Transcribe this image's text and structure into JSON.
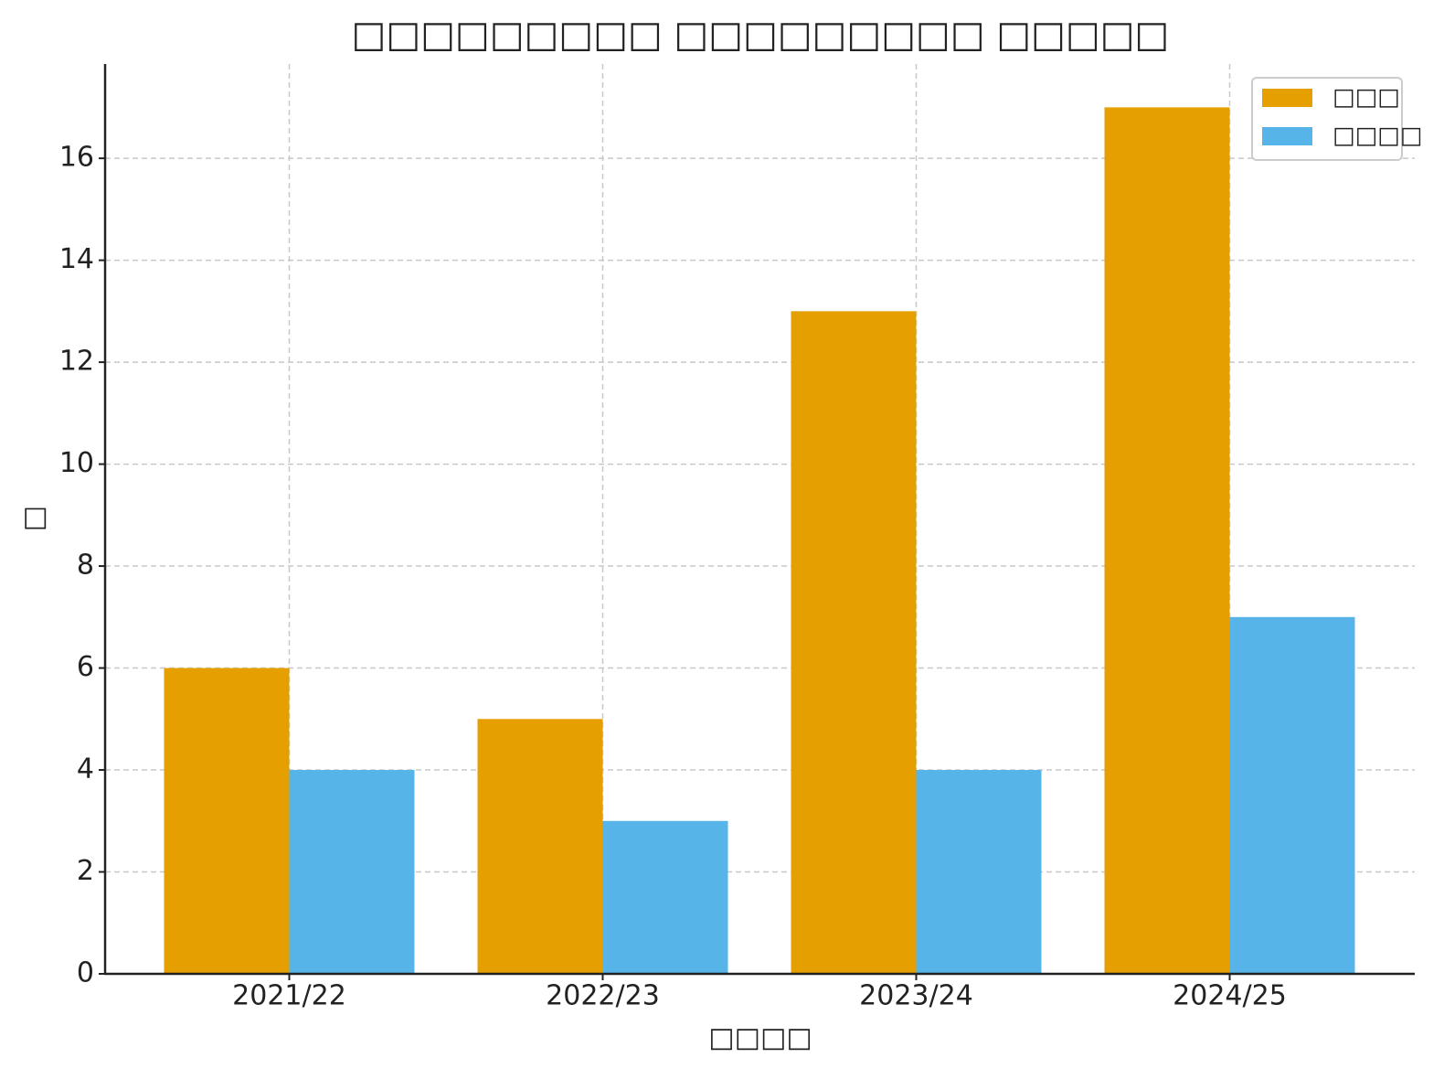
{
  "chart_data": {
    "type": "bar",
    "title": "□□□□□□□□□ □□□□□□□□□ □□□□□",
    "x_label": "□□□□",
    "y_label": "□",
    "categories": [
      "2021/22",
      "2022/23",
      "2023/24",
      "2024/25"
    ],
    "series": [
      {
        "name": "□□□",
        "color": "#e69f00",
        "values": [
          6,
          5,
          13,
          17
        ]
      },
      {
        "name": "□□□□",
        "color": "#56b4e9",
        "values": [
          4,
          3,
          4,
          7
        ]
      }
    ],
    "ylim": [
      0,
      17.85
    ],
    "yticks": [
      0,
      2,
      4,
      6,
      8,
      10,
      12,
      14,
      16
    ],
    "grid": true,
    "legend": "upper right"
  }
}
